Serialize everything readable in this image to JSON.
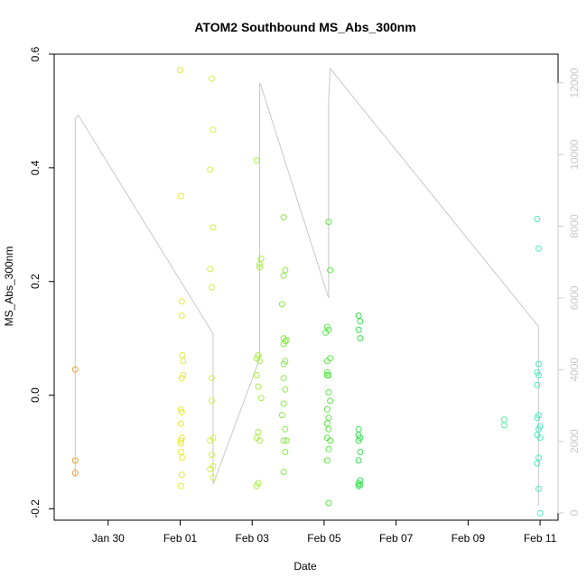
{
  "chart_data": {
    "type": "scatter",
    "title": "ATOM2 Southbound MS_Abs_300nm",
    "xlabel": "Date",
    "ylabel": "MS_Abs_300nm",
    "x_unit": "date",
    "xlim": [
      "2014-01-28T12:00",
      "2014-02-11T12:00"
    ],
    "ylim": [
      -0.22,
      0.6
    ],
    "y_ticks": [
      -0.2,
      0.0,
      0.2,
      0.4,
      0.6
    ],
    "y_tick_labels": [
      "-0.2",
      "0.0",
      "0.2",
      "0.4",
      "0.6"
    ],
    "x_ticks": [
      "2014-01-30",
      "2014-02-01",
      "2014-02-03",
      "2014-02-05",
      "2014-02-07",
      "2014-02-09",
      "2014-02-11"
    ],
    "x_tick_labels": [
      "Jan 30",
      "Feb 01",
      "Feb 03",
      "Feb 05",
      "Feb 07",
      "Feb 09",
      "Feb 11"
    ],
    "y2lim": [
      -200,
      12800
    ],
    "y2_ticks": [
      0,
      2000,
      4000,
      6000,
      8000,
      10000,
      12000
    ],
    "y2_tick_labels": [
      "0",
      "2000",
      "4000",
      "6000",
      "8000",
      "10000",
      "12000"
    ],
    "grid": false,
    "legend": "none",
    "colors": {
      "line": "#c8c8c8",
      "right_axis": "#c8c8c8",
      "points_jan29": "#f0a030",
      "points_feb01": "#e8e838",
      "points_feb02": "#d0f048",
      "points_feb03": "#a8ec48",
      "points_feb04": "#88ea48",
      "points_feb05": "#5ce848",
      "points_feb06": "#38e050",
      "points_feb10": "#54f0a0",
      "points_feb11": "#44f0c0"
    },
    "series": [
      {
        "type": "points",
        "color": "#f0a030",
        "x": [
          "2014-01-29T02:00",
          "2014-01-29T02:00",
          "2014-01-29T02:00"
        ],
        "y": [
          0.045,
          -0.115,
          -0.137
        ]
      },
      {
        "type": "points",
        "color": "#e8e838",
        "x": [
          "2014-02-01T00:00",
          "2014-02-01T00:30",
          "2014-02-01T01:00",
          "2014-02-01T01:00",
          "2014-02-01T01:30",
          "2014-02-01T02:00",
          "2014-02-01T02:00",
          "2014-02-01T01:00",
          "2014-02-01T00:30",
          "2014-02-01T01:00",
          "2014-02-01T00:30",
          "2014-02-01T01:00",
          "2014-02-01T00:30",
          "2014-02-01T00:30",
          "2014-02-01T00:30",
          "2014-02-01T01:30",
          "2014-02-01T01:00",
          "2014-02-01T00:30"
        ],
        "y": [
          0.572,
          0.35,
          0.165,
          0.14,
          0.07,
          0.06,
          0.035,
          0.03,
          -0.025,
          -0.03,
          -0.05,
          -0.075,
          -0.08,
          -0.085,
          -0.1,
          -0.11,
          -0.14,
          -0.16
        ]
      },
      {
        "type": "points",
        "color": "#d0f048",
        "x": [
          "2014-02-01T21:00",
          "2014-02-01T22:00",
          "2014-02-01T20:00",
          "2014-02-01T22:00",
          "2014-02-01T20:00",
          "2014-02-01T21:00",
          "2014-02-01T21:00",
          "2014-02-01T21:00",
          "2014-02-01T22:00",
          "2014-02-01T20:00",
          "2014-02-01T21:00",
          "2014-02-01T22:00",
          "2014-02-01T20:00",
          "2014-02-01T22:00"
        ],
        "y": [
          0.557,
          0.467,
          0.397,
          0.295,
          0.222,
          0.19,
          0.03,
          -0.01,
          -0.075,
          -0.08,
          -0.105,
          -0.125,
          -0.13,
          -0.145
        ]
      },
      {
        "type": "points",
        "color": "#a8ec48",
        "x": [
          "2014-02-03T03:00",
          "2014-02-03T06:00",
          "2014-02-03T05:00",
          "2014-02-03T05:00",
          "2014-02-03T04:00",
          "2014-02-03T03:00",
          "2014-02-03T05:00",
          "2014-02-03T03:00",
          "2014-02-03T04:00",
          "2014-02-03T06:00",
          "2014-02-03T04:00",
          "2014-02-03T03:00",
          "2014-02-03T05:00",
          "2014-02-03T03:00",
          "2014-02-03T04:00"
        ],
        "y": [
          0.413,
          0.24,
          0.23,
          0.225,
          0.07,
          0.065,
          0.06,
          0.035,
          0.015,
          -0.005,
          -0.065,
          -0.075,
          -0.08,
          -0.16,
          -0.155
        ]
      },
      {
        "type": "points",
        "color": "#88ea48",
        "x": [
          "2014-02-03T21:00",
          "2014-02-03T22:00",
          "2014-02-03T21:00",
          "2014-02-03T20:00",
          "2014-02-03T21:00",
          "2014-02-03T22:00",
          "2014-02-03T21:00",
          "2014-02-03T22:00",
          "2014-02-03T21:00",
          "2014-02-03T23:00",
          "2014-02-03T21:00",
          "2014-02-03T22:00",
          "2014-02-03T21:00",
          "2014-02-03T20:00",
          "2014-02-03T22:00",
          "2014-02-03T21:00",
          "2014-02-03T23:00",
          "2014-02-03T22:00",
          "2014-02-03T21:00"
        ],
        "y": [
          0.313,
          0.22,
          0.21,
          0.16,
          0.1,
          0.095,
          0.09,
          0.06,
          0.055,
          0.097,
          0.03,
          0.01,
          -0.015,
          -0.035,
          -0.06,
          -0.08,
          -0.08,
          -0.1,
          -0.135
        ]
      },
      {
        "type": "points",
        "color": "#5ce848",
        "x": [
          "2014-02-05T03:00",
          "2014-02-05T04:00",
          "2014-02-05T02:00",
          "2014-02-05T01:00",
          "2014-02-05T03:00",
          "2014-02-05T02:00",
          "2014-02-05T04:00",
          "2014-02-05T02:00",
          "2014-02-05T03:00",
          "2014-02-05T03:00",
          "2014-02-05T04:00",
          "2014-02-05T02:00",
          "2014-02-05T03:00",
          "2014-02-05T02:00",
          "2014-02-05T03:00",
          "2014-02-05T02:00",
          "2014-02-05T04:00",
          "2014-02-05T03:00",
          "2014-02-05T02:00",
          "2014-02-05T03:00",
          "2014-02-05T02:00"
        ],
        "y": [
          0.305,
          0.22,
          0.12,
          0.11,
          0.115,
          0.06,
          0.065,
          0.035,
          0.035,
          0.005,
          -0.01,
          -0.025,
          -0.04,
          -0.05,
          -0.06,
          -0.075,
          -0.08,
          -0.095,
          -0.115,
          -0.19,
          0.04
        ]
      },
      {
        "type": "points",
        "color": "#38e050",
        "x": [
          "2014-02-05T23:00",
          "2014-02-06T00:00",
          "2014-02-05T23:00",
          "2014-02-06T00:00",
          "2014-02-05T23:00",
          "2014-02-05T23:00",
          "2014-02-06T00:00",
          "2014-02-05T23:00",
          "2014-02-06T00:00",
          "2014-02-05T23:00",
          "2014-02-06T00:00",
          "2014-02-05T23:00",
          "2014-02-06T00:00",
          "2014-02-05T23:00"
        ],
        "y": [
          0.14,
          0.13,
          0.115,
          0.1,
          -0.06,
          -0.07,
          -0.075,
          -0.08,
          -0.1,
          -0.115,
          -0.15,
          -0.155,
          -0.158,
          -0.16
        ]
      },
      {
        "type": "points",
        "color": "#54f0a0",
        "x": [
          "2014-02-10T00:00",
          "2014-02-10T00:00"
        ],
        "y": [
          -0.043,
          -0.053
        ]
      },
      {
        "type": "points",
        "color": "#44f0c0",
        "x": [
          "2014-02-10T22:00",
          "2014-02-10T23:00",
          "2014-02-10T23:00",
          "2014-02-10T22:00",
          "2014-02-10T23:00",
          "2014-02-10T22:00",
          "2014-02-10T23:00",
          "2014-02-10T22:00",
          "2014-02-11T00:00",
          "2014-02-10T23:00",
          "2014-02-10T22:00",
          "2014-02-11T00:00",
          "2014-02-10T23:00",
          "2014-02-10T22:00",
          "2014-02-10T23:00",
          "2014-02-11T00:00"
        ],
        "y": [
          0.31,
          0.258,
          0.055,
          0.04,
          0.035,
          0.018,
          -0.035,
          -0.04,
          -0.055,
          -0.06,
          -0.07,
          -0.075,
          -0.11,
          -0.12,
          -0.165,
          -0.208
        ]
      },
      {
        "type": "line",
        "axis": "right",
        "color": "#c8c8c8",
        "x": [
          "2014-01-29T02:00",
          "2014-01-29T02:00",
          "2014-01-29T04:00",
          "2014-02-01T22:00",
          "2014-02-01T22:00",
          "2014-02-03T05:00",
          "2014-02-03T05:00",
          "2014-02-03T06:00",
          "2014-02-05T03:00",
          "2014-02-05T03:00",
          "2014-02-05T04:00",
          "2014-02-10T23:00",
          "2014-02-10T23:00"
        ],
        "y": [
          1000,
          11000,
          11100,
          5000,
          800,
          4300,
          12000,
          11900,
          6000,
          11500,
          12400,
          5200,
          200
        ]
      }
    ]
  }
}
